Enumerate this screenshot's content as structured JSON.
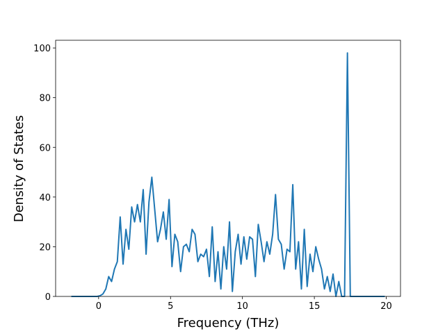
{
  "chart_data": {
    "type": "line",
    "x_label": "Frequency (THz)",
    "y_label": "Density of States",
    "x": [
      -1.9,
      -1.7,
      -1.5,
      -1.3,
      -1.1,
      -0.9,
      -0.7,
      -0.5,
      -0.3,
      -0.1,
      0.1,
      0.3,
      0.5,
      0.7,
      0.9,
      1.1,
      1.3,
      1.5,
      1.7,
      1.9,
      2.1,
      2.3,
      2.5,
      2.7,
      2.9,
      3.1,
      3.3,
      3.5,
      3.7,
      3.9,
      4.1,
      4.3,
      4.5,
      4.7,
      4.9,
      5.1,
      5.3,
      5.5,
      5.7,
      5.9,
      6.1,
      6.3,
      6.5,
      6.7,
      6.9,
      7.1,
      7.3,
      7.5,
      7.7,
      7.9,
      8.1,
      8.3,
      8.5,
      8.7,
      8.9,
      9.1,
      9.3,
      9.5,
      9.7,
      9.9,
      10.1,
      10.3,
      10.5,
      10.7,
      10.9,
      11.1,
      11.3,
      11.5,
      11.7,
      11.9,
      12.1,
      12.3,
      12.5,
      12.7,
      12.9,
      13.1,
      13.3,
      13.5,
      13.7,
      13.9,
      14.1,
      14.3,
      14.5,
      14.7,
      14.9,
      15.1,
      15.3,
      15.5,
      15.7,
      15.9,
      16.1,
      16.3,
      16.5,
      16.7,
      16.9,
      17.1,
      17.3,
      17.5,
      17.7,
      17.9,
      18.1,
      18.3,
      18.5,
      18.7,
      18.9,
      19.1,
      19.3,
      19.5,
      19.7,
      19.9
    ],
    "series": [
      {
        "color": "#1f77b4",
        "values": [
          0,
          0,
          0,
          0,
          0,
          0,
          0,
          0,
          0,
          0,
          0.3,
          1,
          3,
          8,
          6,
          11,
          14,
          32,
          13,
          27,
          19,
          36,
          30,
          37,
          30,
          43,
          17,
          38,
          48,
          35,
          22,
          27,
          34,
          23,
          39,
          12,
          25,
          22,
          10,
          20,
          21,
          18,
          27,
          25,
          14,
          17,
          16,
          19,
          8,
          28,
          6,
          18,
          3,
          20,
          11,
          30,
          2,
          18,
          25,
          13,
          24,
          15,
          24,
          23,
          8,
          29,
          22,
          14,
          22,
          17,
          25,
          41,
          23,
          21,
          11,
          19,
          18,
          45,
          11,
          22,
          3,
          27,
          4,
          17,
          10,
          20,
          15,
          11,
          3,
          8,
          2,
          9,
          0,
          6,
          0,
          0,
          98,
          0,
          0,
          0,
          0,
          0,
          0,
          0,
          0,
          0,
          0,
          0,
          0,
          0
        ]
      }
    ],
    "xlim": [
      -2.99,
      20.99
    ],
    "ylim": [
      0,
      103.1
    ],
    "xticks": [
      0,
      5,
      10,
      15,
      20
    ],
    "yticks": [
      0,
      20,
      40,
      60,
      80,
      100
    ]
  }
}
